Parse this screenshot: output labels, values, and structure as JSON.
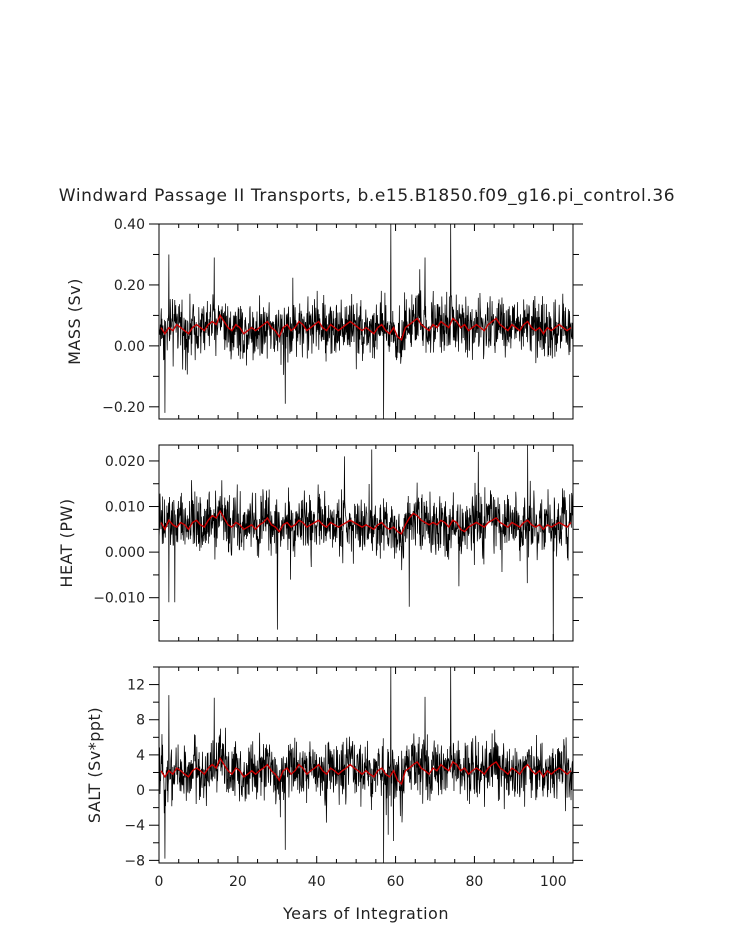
{
  "chart_data": {
    "title": "Windward Passage II Transports, b.e15.B1850.f09_g16.pi_control.36",
    "xlabel": "Years of Integration",
    "xlim": [
      0,
      105
    ],
    "x_ticks": [
      0,
      20,
      40,
      60,
      80,
      100
    ],
    "grid": false,
    "colors": {
      "monthly": "#000000",
      "annual_mean": "#cc0000"
    },
    "panels": [
      {
        "type": "line",
        "ylabel": "MASS (Sv)",
        "ylim": [
          -0.24,
          0.4
        ],
        "y_ticks": [
          -0.2,
          0.0,
          0.2,
          0.4
        ],
        "y_tick_labels": [
          "−0.20",
          "0.00",
          "0.20",
          "0.40"
        ],
        "annual_mean": [
          0.06,
          0.04,
          0.06,
          0.05,
          0.07,
          0.06,
          0.05,
          0.04,
          0.06,
          0.07,
          0.06,
          0.05,
          0.07,
          0.08,
          0.07,
          0.1,
          0.08,
          0.06,
          0.05,
          0.07,
          0.06,
          0.04,
          0.05,
          0.06,
          0.05,
          0.06,
          0.07,
          0.08,
          0.06,
          0.05,
          0.03,
          0.06,
          0.07,
          0.05,
          0.06,
          0.08,
          0.07,
          0.05,
          0.06,
          0.07,
          0.08,
          0.06,
          0.05,
          0.07,
          0.06,
          0.05,
          0.06,
          0.07,
          0.08,
          0.07,
          0.06,
          0.05,
          0.06,
          0.05,
          0.04,
          0.06,
          0.07,
          0.05,
          0.04,
          0.06,
          0.03,
          0.02,
          0.06,
          0.07,
          0.08,
          0.09,
          0.07,
          0.06,
          0.05,
          0.07,
          0.06,
          0.08,
          0.07,
          0.06,
          0.09,
          0.08,
          0.06,
          0.07,
          0.05,
          0.06,
          0.07,
          0.06,
          0.05,
          0.07,
          0.08,
          0.09,
          0.07,
          0.06,
          0.05,
          0.07,
          0.06,
          0.05,
          0.07,
          0.08,
          0.06,
          0.05,
          0.06,
          0.04,
          0.06,
          0.05,
          0.06,
          0.07,
          0.06,
          0.05,
          0.06
        ],
        "spikes": [
          {
            "x": 57.0,
            "y": -0.24
          },
          {
            "x": 58.8,
            "y": 0.4
          },
          {
            "x": 74.0,
            "y": 0.4
          },
          {
            "x": 2.5,
            "y": 0.3
          },
          {
            "x": 1.5,
            "y": -0.22
          },
          {
            "x": 32.0,
            "y": -0.19
          },
          {
            "x": 14.0,
            "y": 0.29
          },
          {
            "x": 67.5,
            "y": 0.29
          }
        ]
      },
      {
        "type": "line",
        "ylabel": "HEAT (PW)",
        "ylim": [
          -0.0195,
          0.0235
        ],
        "y_ticks": [
          -0.01,
          0.0,
          0.01,
          0.02
        ],
        "y_tick_labels": [
          "−0.010",
          "0.000",
          "0.010",
          "0.020"
        ],
        "annual_mean": [
          0.0065,
          0.005,
          0.007,
          0.006,
          0.0055,
          0.0065,
          0.006,
          0.005,
          0.0065,
          0.007,
          0.006,
          0.0055,
          0.007,
          0.008,
          0.0075,
          0.009,
          0.0075,
          0.006,
          0.0055,
          0.0065,
          0.006,
          0.005,
          0.0055,
          0.006,
          0.005,
          0.006,
          0.0065,
          0.0075,
          0.006,
          0.0055,
          0.0045,
          0.006,
          0.0065,
          0.0055,
          0.006,
          0.007,
          0.0065,
          0.0055,
          0.006,
          0.0065,
          0.007,
          0.006,
          0.0055,
          0.0065,
          0.006,
          0.0055,
          0.006,
          0.0065,
          0.007,
          0.0065,
          0.006,
          0.0055,
          0.006,
          0.0055,
          0.005,
          0.006,
          0.0065,
          0.0055,
          0.005,
          0.0055,
          0.0045,
          0.004,
          0.006,
          0.0075,
          0.0085,
          0.008,
          0.007,
          0.0065,
          0.006,
          0.0065,
          0.006,
          0.007,
          0.0065,
          0.0055,
          0.007,
          0.0065,
          0.005,
          0.0045,
          0.0055,
          0.006,
          0.0065,
          0.006,
          0.0055,
          0.0065,
          0.007,
          0.0075,
          0.0065,
          0.006,
          0.0055,
          0.0065,
          0.006,
          0.0055,
          0.0065,
          0.007,
          0.006,
          0.0055,
          0.006,
          0.005,
          0.006,
          0.0055,
          0.006,
          0.0065,
          0.006,
          0.0055,
          0.0065
        ],
        "spikes": [
          {
            "x": 30.0,
            "y": -0.017
          },
          {
            "x": 100.0,
            "y": -0.0195
          },
          {
            "x": 93.5,
            "y": 0.0235
          },
          {
            "x": 47.0,
            "y": 0.021
          },
          {
            "x": 54.0,
            "y": 0.0225
          },
          {
            "x": 81.0,
            "y": 0.022
          },
          {
            "x": 2.5,
            "y": -0.011
          },
          {
            "x": 4.0,
            "y": -0.011
          },
          {
            "x": 63.5,
            "y": -0.012
          }
        ]
      },
      {
        "type": "line",
        "ylabel": "SALT (Sv*ppt)",
        "ylim": [
          -8.3,
          14.0
        ],
        "y_ticks": [
          -8,
          -4,
          0,
          4,
          8,
          12
        ],
        "y_tick_labels": [
          "−8",
          "−4",
          "0",
          "4",
          "8",
          "12"
        ],
        "annual_mean": [
          2.2,
          1.5,
          2.2,
          1.8,
          2.5,
          2.2,
          1.8,
          1.5,
          2.2,
          2.5,
          2.2,
          1.8,
          2.5,
          2.9,
          2.5,
          3.6,
          2.9,
          2.2,
          1.8,
          2.5,
          2.2,
          1.5,
          1.8,
          2.2,
          1.8,
          2.2,
          2.5,
          2.9,
          2.2,
          1.8,
          1.1,
          2.2,
          2.5,
          1.8,
          2.2,
          2.9,
          2.5,
          1.8,
          2.2,
          2.5,
          2.9,
          2.2,
          1.8,
          2.5,
          2.2,
          1.8,
          2.2,
          2.5,
          2.9,
          2.5,
          2.2,
          1.8,
          2.2,
          1.8,
          1.5,
          2.2,
          2.5,
          1.8,
          1.5,
          2.2,
          1.1,
          0.7,
          2.2,
          2.5,
          2.9,
          3.2,
          2.5,
          2.2,
          1.8,
          2.5,
          2.2,
          2.9,
          2.5,
          2.2,
          3.2,
          2.9,
          2.2,
          2.5,
          1.8,
          2.2,
          2.5,
          2.2,
          1.8,
          2.5,
          2.9,
          3.2,
          2.5,
          2.2,
          1.8,
          2.5,
          2.2,
          1.8,
          2.5,
          2.9,
          2.2,
          1.8,
          2.2,
          1.5,
          2.2,
          1.8,
          2.2,
          2.5,
          2.2,
          1.8,
          2.2
        ],
        "spikes": [
          {
            "x": 57.0,
            "y": -8.3
          },
          {
            "x": 58.8,
            "y": 14.0
          },
          {
            "x": 74.0,
            "y": 14.0
          },
          {
            "x": 2.5,
            "y": 10.8
          },
          {
            "x": 1.5,
            "y": -7.8
          },
          {
            "x": 32.0,
            "y": -6.8
          },
          {
            "x": 14.0,
            "y": 10.5
          },
          {
            "x": 67.5,
            "y": 10.6
          },
          {
            "x": 59.5,
            "y": -5.8
          }
        ]
      }
    ]
  }
}
